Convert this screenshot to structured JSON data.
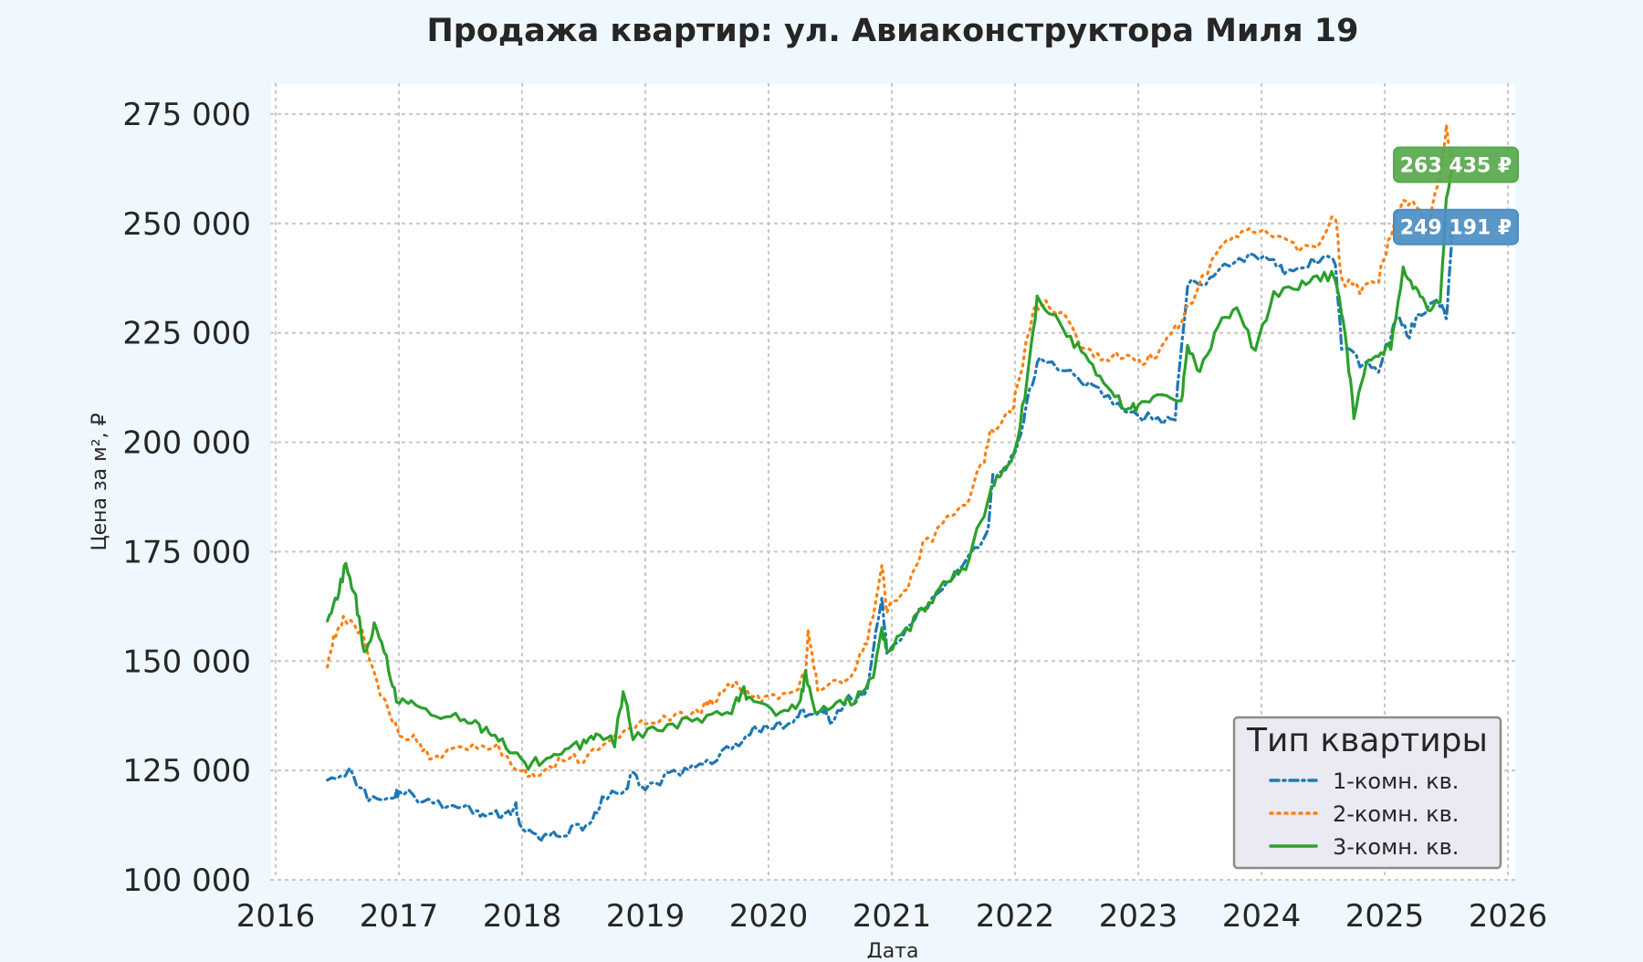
{
  "chart_data": {
    "type": "line",
    "title": "Продажа квартир: ул. Авиаконструктора Миля 19",
    "xlabel": "Дата",
    "ylabel": "Цена за м², ₽",
    "xlim": [
      2016,
      2026
    ],
    "ylim": [
      100000,
      280000
    ],
    "x_ticks": [
      2016,
      2017,
      2018,
      2019,
      2020,
      2021,
      2022,
      2023,
      2024,
      2025,
      2026
    ],
    "x_tick_labels": [
      "2016",
      "2017",
      "2018",
      "2019",
      "2020",
      "2021",
      "2022",
      "2023",
      "2024",
      "2025",
      "2026"
    ],
    "y_ticks": [
      100000,
      125000,
      150000,
      175000,
      200000,
      225000,
      250000,
      275000
    ],
    "y_tick_labels": [
      "100 000",
      "125 000",
      "150 000",
      "175 000",
      "200 000",
      "225 000",
      "250 000",
      "275 000"
    ],
    "grid": true,
    "legend": {
      "title": "Тип квартиры",
      "placement": "lower-right"
    },
    "series": [
      {
        "name": "1-комн. кв.",
        "color": "#1f77b4",
        "linestyle": "dashdot",
        "points": [
          [
            2016.42,
            124000
          ],
          [
            2016.6,
            124500
          ],
          [
            2016.75,
            119000
          ],
          [
            2016.95,
            118500
          ],
          [
            2017.0,
            120500
          ],
          [
            2017.2,
            118000
          ],
          [
            2017.4,
            116500
          ],
          [
            2017.6,
            116000
          ],
          [
            2017.7,
            115000
          ],
          [
            2017.85,
            115000
          ],
          [
            2017.95,
            116500
          ],
          [
            2018.0,
            111000
          ],
          [
            2018.15,
            109500
          ],
          [
            2018.25,
            110000
          ],
          [
            2018.4,
            111500
          ],
          [
            2018.55,
            113000
          ],
          [
            2018.65,
            118000
          ],
          [
            2018.85,
            121000
          ],
          [
            2018.88,
            124000
          ],
          [
            2019.0,
            121000
          ],
          [
            2019.2,
            124000
          ],
          [
            2019.35,
            125000
          ],
          [
            2019.5,
            127000
          ],
          [
            2019.7,
            130000
          ],
          [
            2019.85,
            134000
          ],
          [
            2020.0,
            135000
          ],
          [
            2020.2,
            136000
          ],
          [
            2020.3,
            138500
          ],
          [
            2020.45,
            139000
          ],
          [
            2020.5,
            136000
          ],
          [
            2020.65,
            141000
          ],
          [
            2020.8,
            143000
          ],
          [
            2020.92,
            165000
          ],
          [
            2020.96,
            152000
          ],
          [
            2021.1,
            157000
          ],
          [
            2021.25,
            162000
          ],
          [
            2021.45,
            167000
          ],
          [
            2021.6,
            172000
          ],
          [
            2021.78,
            180000
          ],
          [
            2021.82,
            192000
          ],
          [
            2021.95,
            195000
          ],
          [
            2022.05,
            201000
          ],
          [
            2022.1,
            210000
          ],
          [
            2022.2,
            220000
          ],
          [
            2022.45,
            216000
          ],
          [
            2022.6,
            213000
          ],
          [
            2022.8,
            209000
          ],
          [
            2023.0,
            206000
          ],
          [
            2023.2,
            205000
          ],
          [
            2023.3,
            206000
          ],
          [
            2023.4,
            236000
          ],
          [
            2023.55,
            237000
          ],
          [
            2023.7,
            240000
          ],
          [
            2023.9,
            243000
          ],
          [
            2024.1,
            242000
          ],
          [
            2024.2,
            238000
          ],
          [
            2024.35,
            240000
          ],
          [
            2024.5,
            243000
          ],
          [
            2024.6,
            241000
          ],
          [
            2024.65,
            222000
          ],
          [
            2024.8,
            218000
          ],
          [
            2024.95,
            217000
          ],
          [
            2025.1,
            228000
          ],
          [
            2025.2,
            225000
          ],
          [
            2025.3,
            230000
          ],
          [
            2025.45,
            232000
          ],
          [
            2025.5,
            228000
          ],
          [
            2025.55,
            249191
          ]
        ]
      },
      {
        "name": "2-комн. кв.",
        "color": "#ff7f0e",
        "linestyle": "dotted",
        "points": [
          [
            2016.42,
            149500
          ],
          [
            2016.47,
            155000
          ],
          [
            2016.55,
            160000
          ],
          [
            2016.7,
            157000
          ],
          [
            2016.85,
            143000
          ],
          [
            2016.95,
            137000
          ],
          [
            2017.0,
            134000
          ],
          [
            2017.15,
            132000
          ],
          [
            2017.25,
            127000
          ],
          [
            2017.4,
            129000
          ],
          [
            2017.6,
            131000
          ],
          [
            2017.8,
            130000
          ],
          [
            2018.0,
            125000
          ],
          [
            2018.1,
            123000
          ],
          [
            2018.3,
            127000
          ],
          [
            2018.5,
            128000
          ],
          [
            2018.7,
            131000
          ],
          [
            2018.85,
            135000
          ],
          [
            2019.0,
            136000
          ],
          [
            2019.25,
            137000
          ],
          [
            2019.45,
            139000
          ],
          [
            2019.55,
            141000
          ],
          [
            2019.7,
            145000
          ],
          [
            2019.85,
            142000
          ],
          [
            2020.0,
            141000
          ],
          [
            2020.2,
            143000
          ],
          [
            2020.3,
            147000
          ],
          [
            2020.32,
            156000
          ],
          [
            2020.4,
            144000
          ],
          [
            2020.6,
            145000
          ],
          [
            2020.7,
            148000
          ],
          [
            2020.8,
            154000
          ],
          [
            2020.92,
            171000
          ],
          [
            2020.96,
            162000
          ],
          [
            2021.1,
            165000
          ],
          [
            2021.25,
            176000
          ],
          [
            2021.45,
            182000
          ],
          [
            2021.6,
            186000
          ],
          [
            2021.75,
            196000
          ],
          [
            2021.8,
            202000
          ],
          [
            2021.95,
            206000
          ],
          [
            2022.0,
            210000
          ],
          [
            2022.15,
            230000
          ],
          [
            2022.25,
            232000
          ],
          [
            2022.4,
            229000
          ],
          [
            2022.55,
            222000
          ],
          [
            2022.7,
            219000
          ],
          [
            2022.85,
            220000
          ],
          [
            2023.0,
            218000
          ],
          [
            2023.15,
            220000
          ],
          [
            2023.3,
            226000
          ],
          [
            2023.4,
            231000
          ],
          [
            2023.6,
            241000
          ],
          [
            2023.75,
            247000
          ],
          [
            2023.9,
            249000
          ],
          [
            2024.1,
            247000
          ],
          [
            2024.3,
            244000
          ],
          [
            2024.45,
            245000
          ],
          [
            2024.6,
            252000
          ],
          [
            2024.65,
            237000
          ],
          [
            2024.8,
            235000
          ],
          [
            2024.95,
            237000
          ],
          [
            2025.05,
            248000
          ],
          [
            2025.15,
            256000
          ],
          [
            2025.25,
            254000
          ],
          [
            2025.35,
            249000
          ],
          [
            2025.45,
            262000
          ],
          [
            2025.5,
            272000
          ],
          [
            2025.55,
            263435
          ]
        ]
      },
      {
        "name": "3-комн. кв.",
        "color": "#2ca02c",
        "linestyle": "solid",
        "points": [
          [
            2016.42,
            160000
          ],
          [
            2016.5,
            165000
          ],
          [
            2016.57,
            172000
          ],
          [
            2016.65,
            164000
          ],
          [
            2016.72,
            152000
          ],
          [
            2016.8,
            158000
          ],
          [
            2016.9,
            150000
          ],
          [
            2016.98,
            141000
          ],
          [
            2017.1,
            140000
          ],
          [
            2017.3,
            137000
          ],
          [
            2017.5,
            137500
          ],
          [
            2017.65,
            135000
          ],
          [
            2017.75,
            133000
          ],
          [
            2017.9,
            130000
          ],
          [
            2018.05,
            126000
          ],
          [
            2018.2,
            128000
          ],
          [
            2018.35,
            130000
          ],
          [
            2018.5,
            131000
          ],
          [
            2018.6,
            133000
          ],
          [
            2018.75,
            131500
          ],
          [
            2018.82,
            143000
          ],
          [
            2018.9,
            133000
          ],
          [
            2019.1,
            134000
          ],
          [
            2019.3,
            136000
          ],
          [
            2019.5,
            137000
          ],
          [
            2019.7,
            139000
          ],
          [
            2019.8,
            143000
          ],
          [
            2019.9,
            140000
          ],
          [
            2020.1,
            138000
          ],
          [
            2020.25,
            140000
          ],
          [
            2020.3,
            147000
          ],
          [
            2020.38,
            139000
          ],
          [
            2020.55,
            140000
          ],
          [
            2020.7,
            141000
          ],
          [
            2020.85,
            146000
          ],
          [
            2020.92,
            157000
          ],
          [
            2020.97,
            152000
          ],
          [
            2021.15,
            158000
          ],
          [
            2021.3,
            163000
          ],
          [
            2021.45,
            168000
          ],
          [
            2021.6,
            172000
          ],
          [
            2021.75,
            184000
          ],
          [
            2021.85,
            192000
          ],
          [
            2022.0,
            198000
          ],
          [
            2022.1,
            214000
          ],
          [
            2022.18,
            233000
          ],
          [
            2022.3,
            230000
          ],
          [
            2022.45,
            224000
          ],
          [
            2022.6,
            218000
          ],
          [
            2022.75,
            212000
          ],
          [
            2022.9,
            208000
          ],
          [
            2023.0,
            208000
          ],
          [
            2023.15,
            210000
          ],
          [
            2023.35,
            209000
          ],
          [
            2023.4,
            222000
          ],
          [
            2023.5,
            216000
          ],
          [
            2023.65,
            227000
          ],
          [
            2023.8,
            230000
          ],
          [
            2023.95,
            221000
          ],
          [
            2024.1,
            234000
          ],
          [
            2024.3,
            236000
          ],
          [
            2024.45,
            238000
          ],
          [
            2024.6,
            238000
          ],
          [
            2024.68,
            224000
          ],
          [
            2024.75,
            206000
          ],
          [
            2024.85,
            218000
          ],
          [
            2024.95,
            220000
          ],
          [
            2025.05,
            222000
          ],
          [
            2025.15,
            240000
          ],
          [
            2025.25,
            235000
          ],
          [
            2025.35,
            230000
          ],
          [
            2025.45,
            232000
          ],
          [
            2025.5,
            255000
          ],
          [
            2025.55,
            263435
          ]
        ]
      }
    ],
    "annotations": [
      {
        "text": "263 435 ₽",
        "x": 2025.55,
        "y": 263435,
        "color": "#57a84b"
      },
      {
        "text": "249 191 ₽",
        "x": 2025.55,
        "y": 249191,
        "color": "#4a8ec3"
      }
    ]
  }
}
